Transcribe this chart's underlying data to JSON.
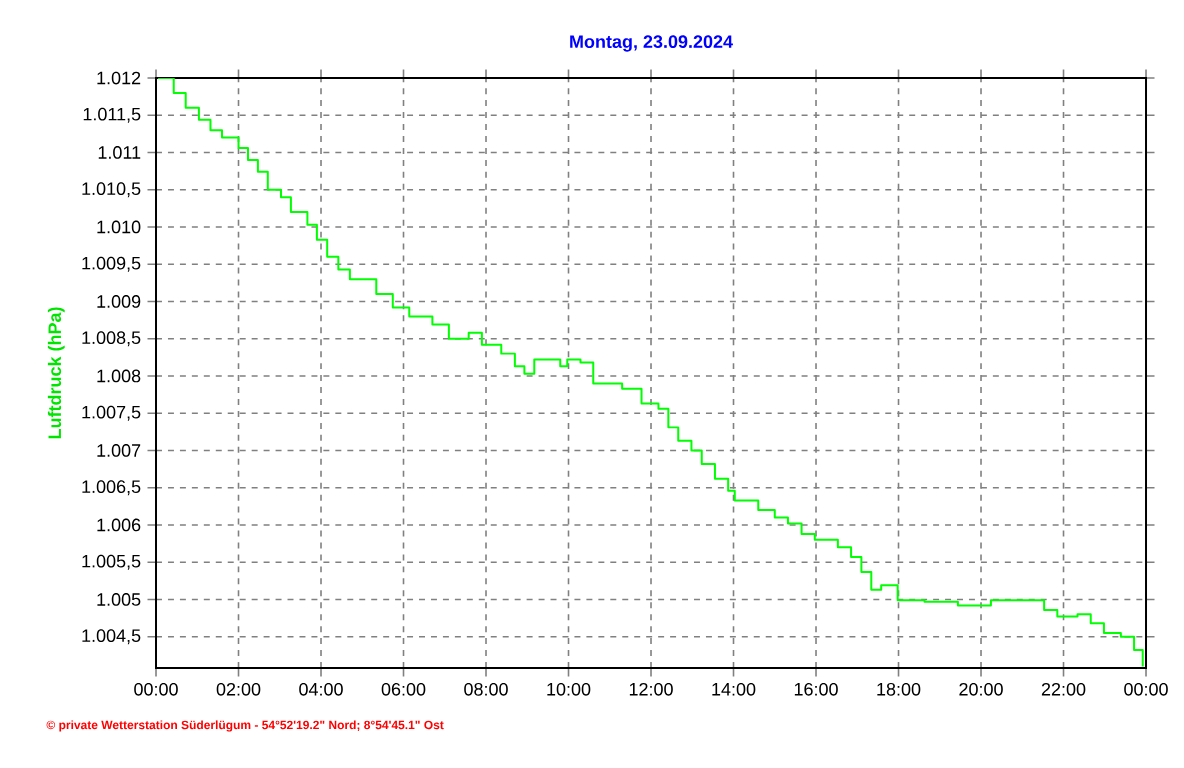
{
  "chart_data": {
    "type": "step",
    "title": "Montag, 23.09.2024",
    "ylabel": "Luftdruck (hPa)",
    "annotations": [
      "© private Wetterstation Süderlügum - 54°52'19.2\" Nord; 8°54'45.1\" Ost"
    ],
    "xlim": [
      0,
      24
    ],
    "ylim": [
      1004.08,
      1012
    ],
    "grid": true,
    "line_style": "dashed",
    "xticks": [
      {
        "value": 0,
        "label": "00:00"
      },
      {
        "value": 2,
        "label": "02:00"
      },
      {
        "value": 4,
        "label": "04:00"
      },
      {
        "value": 6,
        "label": "06:00"
      },
      {
        "value": 8,
        "label": "08:00"
      },
      {
        "value": 10,
        "label": "10:00"
      },
      {
        "value": 12,
        "label": "12:00"
      },
      {
        "value": 14,
        "label": "14:00"
      },
      {
        "value": 16,
        "label": "16:00"
      },
      {
        "value": 18,
        "label": "18:00"
      },
      {
        "value": 20,
        "label": "20:00"
      },
      {
        "value": 22,
        "label": "22:00"
      },
      {
        "value": 24,
        "label": "00:00"
      }
    ],
    "yticks": [
      {
        "value": 1004.5,
        "label": "1.004,5"
      },
      {
        "value": 1005,
        "label": "1.005"
      },
      {
        "value": 1005.5,
        "label": "1.005,5"
      },
      {
        "value": 1006,
        "label": "1.006"
      },
      {
        "value": 1006.5,
        "label": "1.006,5"
      },
      {
        "value": 1007,
        "label": "1.007"
      },
      {
        "value": 1007.5,
        "label": "1.007,5"
      },
      {
        "value": 1008,
        "label": "1.008"
      },
      {
        "value": 1008.5,
        "label": "1.008,5"
      },
      {
        "value": 1009,
        "label": "1.009"
      },
      {
        "value": 1009.5,
        "label": "1.009,5"
      },
      {
        "value": 1010,
        "label": "1.010"
      },
      {
        "value": 1010.5,
        "label": "1.010,5"
      },
      {
        "value": 1011,
        "label": "1.011"
      },
      {
        "value": 1011.5,
        "label": "1.011,5"
      },
      {
        "value": 1012,
        "label": "1.012"
      }
    ],
    "series": [
      {
        "color": "#00ff00",
        "line_style": "solid",
        "x": [
          0.05,
          0.43,
          0.72,
          1.04,
          1.32,
          1.6,
          2.0,
          2.23,
          2.47,
          2.71,
          3.03,
          3.27,
          3.67,
          3.9,
          4.15,
          4.42,
          4.7,
          5.34,
          5.74,
          6.14,
          6.7,
          7.1,
          7.58,
          7.9,
          8.37,
          8.7,
          8.93,
          9.17,
          9.8,
          9.97,
          10.29,
          10.6,
          11.3,
          11.77,
          12.18,
          12.42,
          12.66,
          12.98,
          13.23,
          13.55,
          13.87,
          14.03,
          14.6,
          15.0,
          15.32,
          15.65,
          15.97,
          16.53,
          16.85,
          17.1,
          17.34,
          17.58,
          17.98,
          18.63,
          19.44,
          20.08,
          20.24,
          21.37,
          21.53,
          21.85,
          22.34,
          22.66,
          22.98,
          23.39,
          23.71,
          23.92
        ],
        "values": [
          1012.0,
          1011.8,
          1011.6,
          1011.44,
          1011.3,
          1011.2,
          1011.06,
          1010.9,
          1010.74,
          1010.5,
          1010.4,
          1010.2,
          1010.03,
          1009.83,
          1009.6,
          1009.43,
          1009.3,
          1009.1,
          1008.92,
          1008.8,
          1008.69,
          1008.5,
          1008.58,
          1008.42,
          1008.3,
          1008.13,
          1008.03,
          1008.22,
          1008.13,
          1008.22,
          1008.18,
          1007.9,
          1007.83,
          1007.63,
          1007.56,
          1007.31,
          1007.13,
          1007.0,
          1006.82,
          1006.62,
          1006.46,
          1006.33,
          1006.2,
          1006.1,
          1006.02,
          1005.88,
          1005.8,
          1005.7,
          1005.57,
          1005.37,
          1005.13,
          1005.19,
          1004.99,
          1004.97,
          1004.92,
          1004.92,
          1004.99,
          1004.99,
          1004.86,
          1004.77,
          1004.8,
          1004.68,
          1004.55,
          1004.5,
          1004.32,
          1004.1
        ]
      }
    ]
  }
}
